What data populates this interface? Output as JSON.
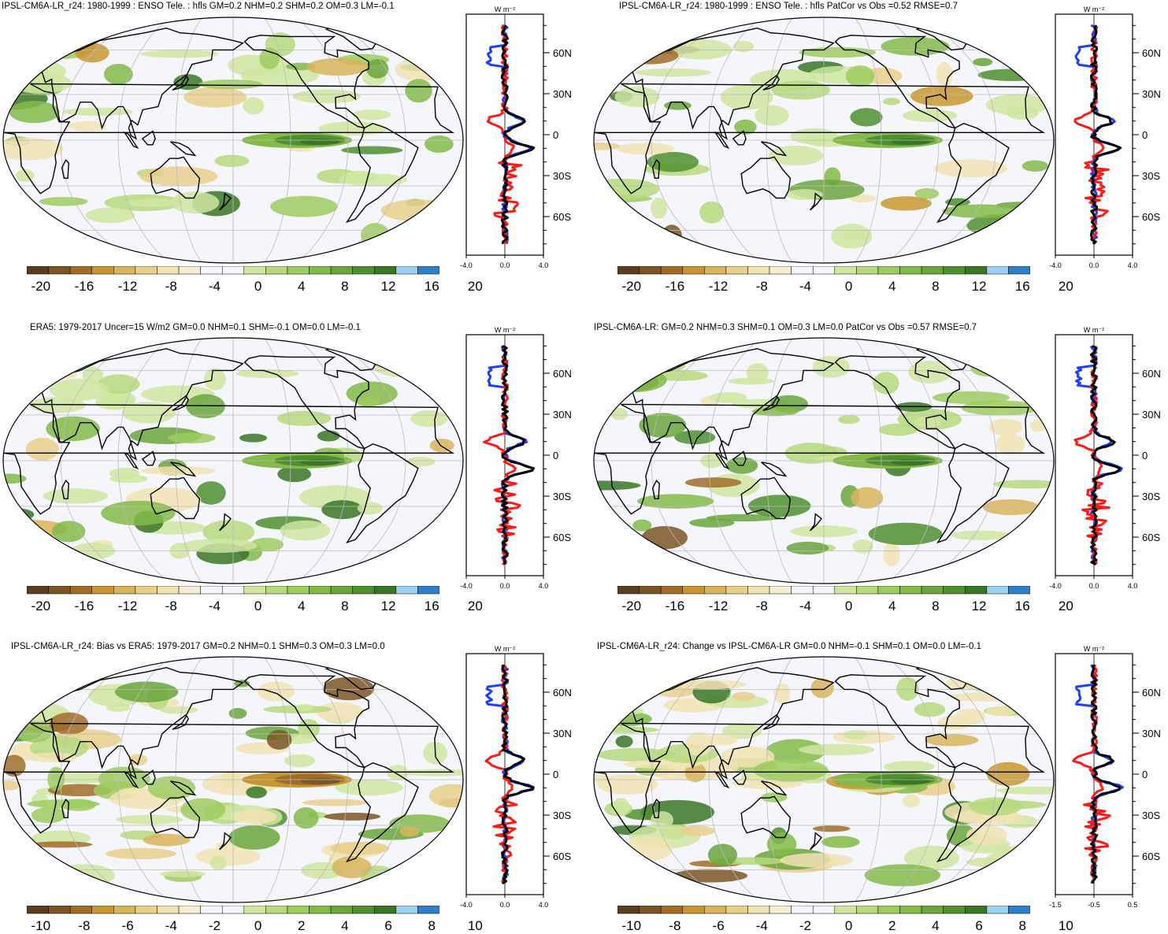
{
  "panels": [
    {
      "id": "p1",
      "title": "IPSL-CM6A-LR_r24: 1980-1999 : ENSO Tele. : hfls GM=0.2 NHM=0.2 SHM=0.2 OM=0.3 LM=-0.1",
      "colorbar_labels": [
        "-20",
        "-16",
        "-12",
        "-8",
        "-4",
        "0",
        "4",
        "8",
        "12",
        "16",
        "20"
      ],
      "profile": {
        "unit": "W m⁻²",
        "xticks": [
          "-4.0",
          "0.0",
          "4.0"
        ],
        "yticks": [
          "60N",
          "30N",
          "0",
          "30S",
          "60S"
        ]
      }
    },
    {
      "id": "p2",
      "title": "IPSL-CM6A-LR_r24: 1980-1999 : ENSO Tele. : hfls PatCor vs Obs =0.52 RMSE=0.7",
      "colorbar_labels": [
        "-20",
        "-16",
        "-12",
        "-8",
        "-4",
        "0",
        "4",
        "8",
        "12",
        "16",
        "20"
      ],
      "profile": {
        "unit": "W m⁻²",
        "xticks": [
          "-4.0",
          "0.0",
          "4.0"
        ],
        "yticks": [
          "60N",
          "30N",
          "0",
          "30S",
          "60S"
        ]
      }
    },
    {
      "id": "p3",
      "title": "ERA5: 1979-2017 Uncer=15 W/m2 GM=0.0 NHM=0.1 SHM=-0.1 OM=0.0 LM=-0.1",
      "colorbar_labels": [
        "-20",
        "-16",
        "-12",
        "-8",
        "-4",
        "0",
        "4",
        "8",
        "12",
        "16",
        "20"
      ],
      "profile": {
        "unit": "W m⁻²",
        "xticks": [
          "-4.0",
          "0.0",
          "4.0"
        ],
        "yticks": [
          "60N",
          "30N",
          "0",
          "30S",
          "60S"
        ]
      }
    },
    {
      "id": "p4",
      "title": "IPSL-CM6A-LR: GM=0.2 NHM=0.3 SHM=0.1 OM=0.3 LM=0.0 PatCor vs Obs =0.57 RMSE=0.7",
      "colorbar_labels": [
        "-20",
        "-16",
        "-12",
        "-8",
        "-4",
        "0",
        "4",
        "8",
        "12",
        "16",
        "20"
      ],
      "profile": {
        "unit": "W m⁻²",
        "xticks": [
          "-4.0",
          "0.0",
          "4.0"
        ],
        "yticks": [
          "60N",
          "30N",
          "0",
          "30S",
          "60S"
        ]
      }
    },
    {
      "id": "p5",
      "title": "IPSL-CM6A-LR_r24: Bias vs ERA5: 1979-2017 GM=0.2 NHM=0.1 SHM=0.3 OM=0.3 LM=0.0",
      "colorbar_labels": [
        "-10",
        "-8",
        "-6",
        "-4",
        "-2",
        "0",
        "2",
        "4",
        "6",
        "8",
        "10"
      ],
      "profile": {
        "unit": "W m⁻²",
        "xticks": [
          "-4.0",
          "0.0",
          "4.0"
        ],
        "yticks": [
          "60N",
          "30N",
          "0",
          "30S",
          "60S"
        ]
      }
    },
    {
      "id": "p6",
      "title": "IPSL-CM6A-LR_r24: Change vs IPSL-CM6A-LR GM=0.0 NHM=-0.1 SHM=0.1 OM=0.0 LM=-0.1",
      "colorbar_labels": [
        "-10",
        "-8",
        "-6",
        "-4",
        "-2",
        "0",
        "2",
        "4",
        "6",
        "8",
        "10"
      ],
      "profile": {
        "unit": "W m⁻²",
        "xticks": [
          "-1.5",
          "-0.5",
          "0.5"
        ],
        "yticks": [
          "60N",
          "30N",
          "0",
          "30S",
          "60S"
        ]
      }
    }
  ],
  "colors": {
    "colorbar": [
      "#5a3d1f",
      "#7b5525",
      "#a06d28",
      "#c8962e",
      "#d9b45a",
      "#e8cf8c",
      "#f1e3b4",
      "#f5eed4",
      "#f4f6fb",
      "#f4f6fb",
      "#cfe6a0",
      "#b6d97c",
      "#9dcb5e",
      "#83ba48",
      "#6aa63b",
      "#4f8f30",
      "#3a7626",
      "#9bd0f0",
      "#2f7fc8"
    ],
    "ocean": "#f4f6fb",
    "land_outline": "#000000",
    "grid": "#bbbbbb",
    "profile_series": [
      "#1f3fff",
      "#ff1a1a",
      "#000000"
    ]
  }
}
